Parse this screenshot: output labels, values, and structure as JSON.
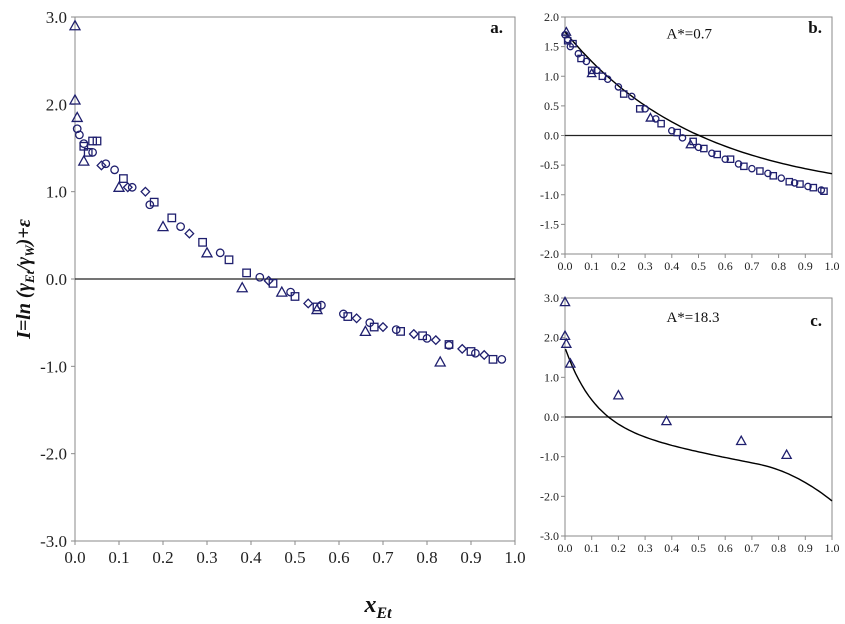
{
  "colors": {
    "marker": "#1f1f6e",
    "frame": "#8a8a8a",
    "zero_line": "#222222",
    "curve": "#000000"
  },
  "labels": {
    "ylabel": {
      "main": "I=ln (γ",
      "sub1": "Et",
      "mid": "/γ",
      "sub2": "W",
      "end": ")+ε"
    },
    "xlabel": {
      "main": "x",
      "sub": "Et"
    }
  },
  "chart_data": [
    {
      "id": "a",
      "panel_label": "a.",
      "type": "scatter",
      "xlim": [
        0,
        1
      ],
      "ylim": [
        -3,
        3
      ],
      "x_ticks": [
        "0.0",
        "0.1",
        "0.2",
        "0.3",
        "0.4",
        "0.5",
        "0.6",
        "0.7",
        "0.8",
        "0.9",
        "1.0"
      ],
      "y_ticks": [
        "3.0",
        "2.0",
        "1.0",
        "0.0",
        "-1.0",
        "-2.0",
        "-3.0"
      ],
      "zero_line": true,
      "series": [
        {
          "marker": "triangle",
          "x": [
            0.0,
            0.0,
            0.005,
            0.02,
            0.1,
            0.2,
            0.3,
            0.38,
            0.47,
            0.55,
            0.66,
            0.83
          ],
          "y": [
            2.9,
            2.05,
            1.85,
            1.35,
            1.05,
            0.6,
            0.3,
            -0.1,
            -0.15,
            -0.35,
            -0.6,
            -0.95
          ]
        },
        {
          "marker": "circle",
          "x": [
            0.005,
            0.01,
            0.02,
            0.04,
            0.07,
            0.09,
            0.13,
            0.17,
            0.24,
            0.33,
            0.42,
            0.49,
            0.56,
            0.61,
            0.67,
            0.73,
            0.8,
            0.85,
            0.91,
            0.97
          ],
          "y": [
            1.72,
            1.65,
            1.55,
            1.45,
            1.32,
            1.25,
            1.05,
            0.85,
            0.6,
            0.3,
            0.02,
            -0.15,
            -0.3,
            -0.4,
            -0.5,
            -0.58,
            -0.68,
            -0.76,
            -0.85,
            -0.92
          ]
        },
        {
          "marker": "square",
          "x": [
            0.02,
            0.03,
            0.04,
            0.05,
            0.11,
            0.18,
            0.22,
            0.29,
            0.35,
            0.39,
            0.45,
            0.5,
            0.55,
            0.62,
            0.68,
            0.74,
            0.79,
            0.85,
            0.9,
            0.95
          ],
          "y": [
            1.52,
            1.45,
            1.58,
            1.58,
            1.15,
            0.88,
            0.7,
            0.42,
            0.22,
            0.07,
            -0.05,
            -0.2,
            -0.32,
            -0.43,
            -0.55,
            -0.6,
            -0.65,
            -0.75,
            -0.83,
            -0.92
          ]
        },
        {
          "marker": "diamond",
          "x": [
            0.06,
            0.12,
            0.16,
            0.26,
            0.44,
            0.53,
            0.64,
            0.7,
            0.77,
            0.82,
            0.88,
            0.93
          ],
          "y": [
            1.3,
            1.05,
            1.0,
            0.52,
            -0.02,
            -0.28,
            -0.45,
            -0.55,
            -0.63,
            -0.7,
            -0.8,
            -0.87
          ]
        }
      ]
    },
    {
      "id": "b",
      "panel_label": "b.",
      "annotation": "A*=0.7",
      "type": "scatter",
      "xlim": [
        0,
        1
      ],
      "ylim": [
        -2,
        2
      ],
      "x_ticks": [
        "0.0",
        "0.1",
        "0.2",
        "0.3",
        "0.4",
        "0.5",
        "0.6",
        "0.7",
        "0.8",
        "0.9",
        "1.0"
      ],
      "y_ticks": [
        "2.0",
        "1.5",
        "1.0",
        "0.5",
        "0.0",
        "-0.5",
        "-1.0",
        "-1.5",
        "-2.0"
      ],
      "zero_line": true,
      "series": [
        {
          "marker": "triangle",
          "x": [
            0.005,
            0.1,
            0.32,
            0.47
          ],
          "y": [
            1.75,
            1.05,
            0.3,
            -0.15
          ]
        },
        {
          "marker": "circle",
          "x": [
            0.0,
            0.01,
            0.02,
            0.05,
            0.08,
            0.12,
            0.16,
            0.2,
            0.25,
            0.3,
            0.34,
            0.4,
            0.44,
            0.5,
            0.55,
            0.6,
            0.65,
            0.7,
            0.76,
            0.81,
            0.86,
            0.91,
            0.96
          ],
          "y": [
            1.7,
            1.62,
            1.5,
            1.38,
            1.25,
            1.1,
            0.95,
            0.82,
            0.66,
            0.45,
            0.28,
            0.08,
            -0.04,
            -0.2,
            -0.3,
            -0.4,
            -0.48,
            -0.56,
            -0.64,
            -0.72,
            -0.8,
            -0.86,
            -0.92
          ]
        },
        {
          "marker": "square",
          "x": [
            0.01,
            0.03,
            0.06,
            0.1,
            0.14,
            0.22,
            0.28,
            0.36,
            0.42,
            0.48,
            0.52,
            0.57,
            0.62,
            0.67,
            0.73,
            0.78,
            0.84,
            0.88,
            0.93,
            0.97
          ],
          "y": [
            1.6,
            1.55,
            1.3,
            1.1,
            1.0,
            0.7,
            0.45,
            0.2,
            0.05,
            -0.1,
            -0.22,
            -0.32,
            -0.4,
            -0.52,
            -0.6,
            -0.68,
            -0.78,
            -0.82,
            -0.88,
            -0.94
          ]
        }
      ],
      "fit_curve": true
    },
    {
      "id": "c",
      "panel_label": "c.",
      "annotation": "A*=18.3",
      "type": "scatter",
      "xlim": [
        0,
        1
      ],
      "ylim": [
        -3,
        3
      ],
      "x_ticks": [
        "0.0",
        "0.1",
        "0.2",
        "0.3",
        "0.4",
        "0.5",
        "0.6",
        "0.7",
        "0.8",
        "0.9",
        "1.0"
      ],
      "y_ticks": [
        "3.0",
        "2.0",
        "1.0",
        "0.0",
        "-1.0",
        "-2.0",
        "-3.0"
      ],
      "zero_line": true,
      "series": [
        {
          "marker": "triangle",
          "x": [
            0.0,
            0.0,
            0.005,
            0.02,
            0.2,
            0.38,
            0.66,
            0.83
          ],
          "y": [
            2.9,
            2.05,
            1.85,
            1.35,
            0.55,
            -0.1,
            -0.6,
            -0.95
          ]
        }
      ],
      "fit_curve": true
    }
  ]
}
